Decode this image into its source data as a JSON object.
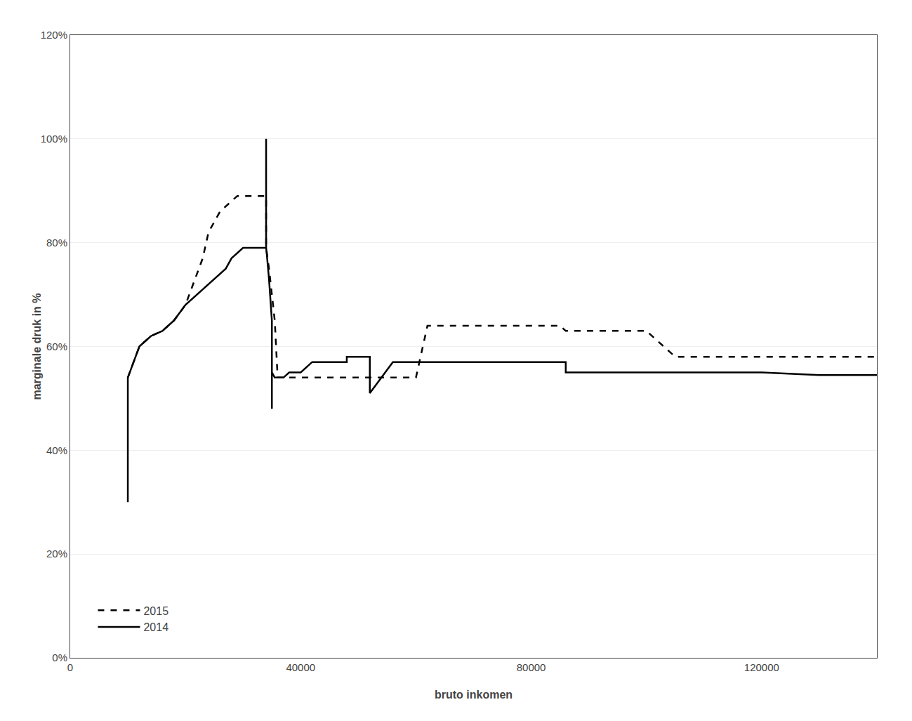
{
  "chart_data": {
    "type": "line",
    "x_label": "bruto inkomen",
    "y_label": "marginale druk in %",
    "xlim": [
      0,
      140000
    ],
    "ylim": [
      0.0,
      1.2
    ],
    "xticks": [
      0,
      40000,
      80000,
      120000
    ],
    "yticks": [
      {
        "value": 0.0,
        "label": "0%"
      },
      {
        "value": 0.2,
        "label": "20%"
      },
      {
        "value": 0.4,
        "label": "40%"
      },
      {
        "value": 0.6,
        "label": "60%"
      },
      {
        "value": 0.8,
        "label": "80%"
      },
      {
        "value": 1.0,
        "label": "100%"
      },
      {
        "value": 1.2,
        "label": "120%"
      }
    ],
    "grid": "y",
    "legend": "lower left",
    "series": [
      {
        "name": "2014",
        "color": "#000000",
        "line_style": "solid",
        "x": [
          10000,
          10001,
          12000,
          14000,
          16000,
          18000,
          20000,
          22000,
          24000,
          25000,
          26000,
          27000,
          28000,
          29000,
          30000,
          31000,
          32000,
          33000,
          33999,
          34000,
          34001,
          34100,
          34500,
          34999,
          35000,
          35001,
          35500,
          36000,
          37000,
          38000,
          39000,
          40000,
          42000,
          44000,
          46000,
          47999,
          48000,
          49000,
          50000,
          51999,
          52000,
          56000,
          58000,
          60000,
          66000,
          68000,
          70000,
          80000,
          85000,
          85999,
          86000,
          87000,
          90000,
          100000,
          105000,
          110000,
          120000,
          130000,
          140000
        ],
        "values": [
          0.3,
          0.54,
          0.6,
          0.62,
          0.63,
          0.65,
          0.68,
          0.7,
          0.72,
          0.73,
          0.74,
          0.75,
          0.77,
          0.78,
          0.79,
          0.79,
          0.79,
          0.79,
          0.79,
          1.0,
          0.79,
          0.78,
          0.73,
          0.65,
          0.48,
          0.55,
          0.54,
          0.54,
          0.54,
          0.55,
          0.55,
          0.55,
          0.57,
          0.57,
          0.57,
          0.57,
          0.58,
          0.58,
          0.58,
          0.58,
          0.51,
          0.57,
          0.57,
          0.57,
          0.57,
          0.57,
          0.57,
          0.57,
          0.57,
          0.57,
          0.55,
          0.55,
          0.55,
          0.55,
          0.55,
          0.55,
          0.55,
          0.545,
          0.545
        ]
      },
      {
        "name": "2015",
        "color": "#000000",
        "line_style": "dashed",
        "x": [
          10000,
          12000,
          14000,
          16000,
          18000,
          20000,
          21000,
          22000,
          23000,
          24000,
          25000,
          26000,
          27000,
          28000,
          29000,
          30000,
          31000,
          32000,
          33000,
          33999,
          34000,
          34001,
          34500,
          35000,
          35500,
          36000,
          37000,
          38000,
          39000,
          40000,
          42000,
          44000,
          46000,
          48000,
          50000,
          52000,
          54000,
          56000,
          58000,
          60000,
          62000,
          64000,
          66000,
          68000,
          70000,
          72000,
          74000,
          76000,
          78000,
          80000,
          82000,
          84000,
          85000,
          86000,
          88000,
          90000,
          95000,
          100000,
          105000,
          110000,
          115000,
          120000,
          125000,
          130000,
          135000,
          140000
        ],
        "values": [
          0.54,
          0.6,
          0.62,
          0.63,
          0.65,
          0.68,
          0.71,
          0.74,
          0.77,
          0.82,
          0.84,
          0.86,
          0.87,
          0.88,
          0.89,
          0.89,
          0.89,
          0.89,
          0.89,
          0.89,
          0.8,
          0.79,
          0.75,
          0.7,
          0.65,
          0.54,
          0.54,
          0.54,
          0.54,
          0.54,
          0.54,
          0.54,
          0.54,
          0.54,
          0.54,
          0.54,
          0.54,
          0.54,
          0.54,
          0.54,
          0.64,
          0.64,
          0.64,
          0.64,
          0.64,
          0.64,
          0.64,
          0.64,
          0.64,
          0.64,
          0.64,
          0.64,
          0.64,
          0.63,
          0.63,
          0.63,
          0.63,
          0.63,
          0.58,
          0.58,
          0.58,
          0.58,
          0.58,
          0.58,
          0.58,
          0.58
        ]
      }
    ]
  }
}
